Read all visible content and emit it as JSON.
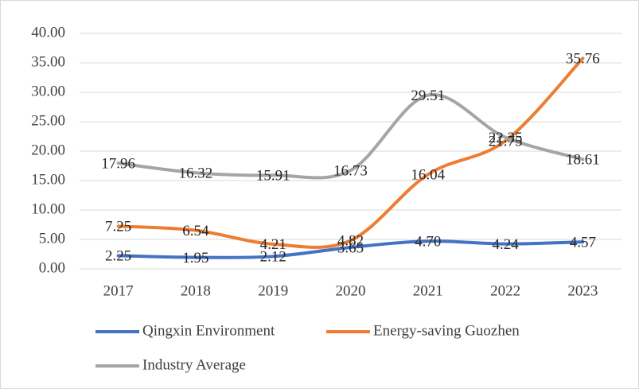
{
  "chart_data": {
    "type": "line",
    "categories": [
      "2017",
      "2018",
      "2019",
      "2020",
      "2021",
      "2022",
      "2023"
    ],
    "series": [
      {
        "name": "Qingxin Environment",
        "color": "#4472c4",
        "values": [
          2.25,
          1.95,
          2.12,
          3.65,
          4.7,
          4.24,
          4.57
        ],
        "value_labels": [
          "2.25",
          "1.95",
          "2.12",
          "3.65",
          "4.70",
          "4.24",
          "4.57"
        ]
      },
      {
        "name": "Energy-saving Guozhen",
        "color": "#ed7d31",
        "values": [
          7.25,
          6.54,
          4.21,
          4.82,
          16.04,
          21.75,
          35.76
        ],
        "value_labels": [
          "7.25",
          "6.54",
          "4.21",
          "4.82",
          "16.04",
          "21.75",
          "35.76"
        ]
      },
      {
        "name": "Industry Average",
        "color": "#a5a5a5",
        "values": [
          17.96,
          16.32,
          15.91,
          16.73,
          29.51,
          22.35,
          18.61
        ],
        "value_labels": [
          "17.96",
          "16.32",
          "15.91",
          "16.73",
          "29.51",
          "22.35",
          "18.61"
        ]
      }
    ],
    "ylim": [
      0,
      40
    ],
    "yticks": [
      {
        "value": 0,
        "label": "0.00"
      },
      {
        "value": 5,
        "label": "5.00"
      },
      {
        "value": 10,
        "label": "10.00"
      },
      {
        "value": 15,
        "label": "15.00"
      },
      {
        "value": 20,
        "label": "20.00"
      },
      {
        "value": 25,
        "label": "25.00"
      },
      {
        "value": 30,
        "label": "30.00"
      },
      {
        "value": 35,
        "label": "35.00"
      },
      {
        "value": 40,
        "label": "40.00"
      }
    ],
    "grid": true,
    "legend": "bottom"
  }
}
